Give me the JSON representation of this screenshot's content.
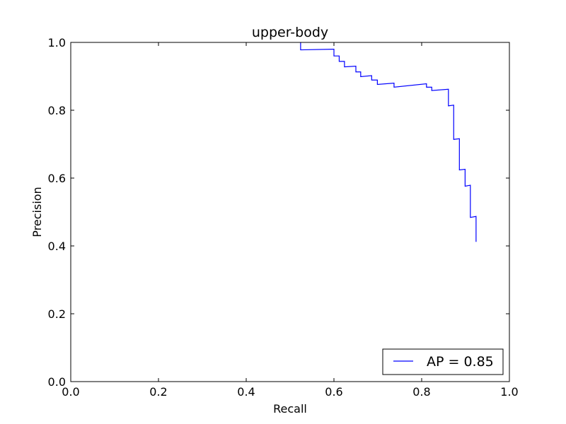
{
  "chart_data": {
    "type": "line",
    "title": "upper-body",
    "xlabel": "Recall",
    "ylabel": "Precision",
    "xlim": [
      0.0,
      1.0
    ],
    "ylim": [
      0.0,
      1.0
    ],
    "xticks": [
      "0.0",
      "0.2",
      "0.4",
      "0.6",
      "0.8",
      "1.0"
    ],
    "yticks": [
      "0.0",
      "0.2",
      "0.4",
      "0.6",
      "0.8",
      "1.0"
    ],
    "grid": false,
    "legend_position": "lower-right",
    "series": [
      {
        "name": "AP = 0.85",
        "color": "#0000ff",
        "x": [
          0.524,
          0.524,
          0.598,
          0.6,
          0.6,
          0.612,
          0.612,
          0.624,
          0.624,
          0.65,
          0.65,
          0.661,
          0.661,
          0.686,
          0.686,
          0.699,
          0.699,
          0.737,
          0.737,
          0.811,
          0.811,
          0.823,
          0.823,
          0.861,
          0.861,
          0.873,
          0.873,
          0.886,
          0.886,
          0.899,
          0.899,
          0.911,
          0.911,
          0.924,
          0.924
        ],
        "y": [
          1.0,
          0.978,
          0.98,
          0.98,
          0.96,
          0.96,
          0.944,
          0.944,
          0.928,
          0.93,
          0.913,
          0.913,
          0.899,
          0.902,
          0.889,
          0.889,
          0.876,
          0.88,
          0.868,
          0.878,
          0.868,
          0.868,
          0.858,
          0.862,
          0.813,
          0.815,
          0.714,
          0.716,
          0.624,
          0.626,
          0.576,
          0.579,
          0.484,
          0.487,
          0.412
        ]
      }
    ]
  }
}
